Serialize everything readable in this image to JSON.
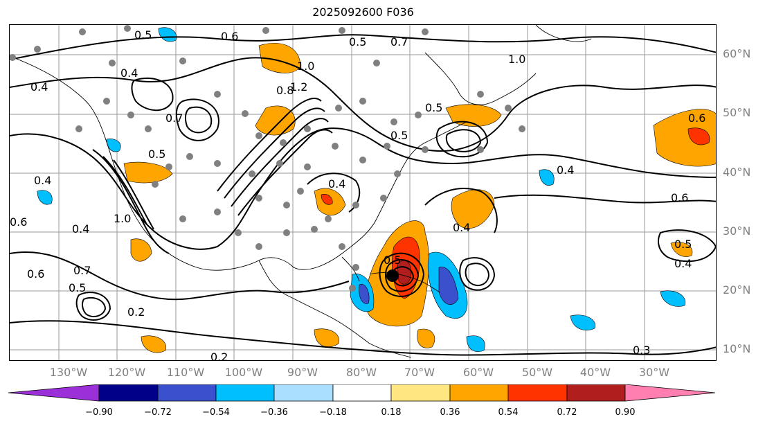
{
  "title": "2025092600 F036",
  "lat_labels": [
    "60°N",
    "50°N",
    "40°N",
    "30°N",
    "20°N",
    "10°N"
  ],
  "lon_labels": [
    "130°W",
    "120°W",
    "110°W",
    "100°W",
    "90°W",
    "80°W",
    "70°W",
    "60°W",
    "50°W",
    "40°W",
    "30°W"
  ],
  "contour_labels": [
    "0.5",
    "0.6",
    "0.5",
    "0.7",
    "1.0",
    "0.4",
    "0.4",
    "0.7",
    "1.2",
    "1.0",
    "0.5",
    "0.8",
    "0.5",
    "0.6",
    "0.4",
    "0.5",
    "0.6",
    "0.4",
    "1.0",
    "0.4",
    "0.6",
    "0.7",
    "0.4",
    "0.5",
    "0.2",
    "0.2",
    "0.3",
    "0.4",
    "0.5",
    "0.4",
    "0.6",
    "0.5"
  ],
  "colorbar": {
    "ticks": [
      "−0.90",
      "−0.72",
      "−0.54",
      "−0.36",
      "−0.18",
      "0.18",
      "0.36",
      "0.54",
      "0.72",
      "0.90"
    ],
    "colors": [
      "#9b30d8",
      "#000088",
      "#3a50cc",
      "#00bfff",
      "#aadfff",
      "#ffffff",
      "#ffe680",
      "#ffa500",
      "#ff3300",
      "#b01e1e",
      "#ff80b0"
    ]
  }
}
